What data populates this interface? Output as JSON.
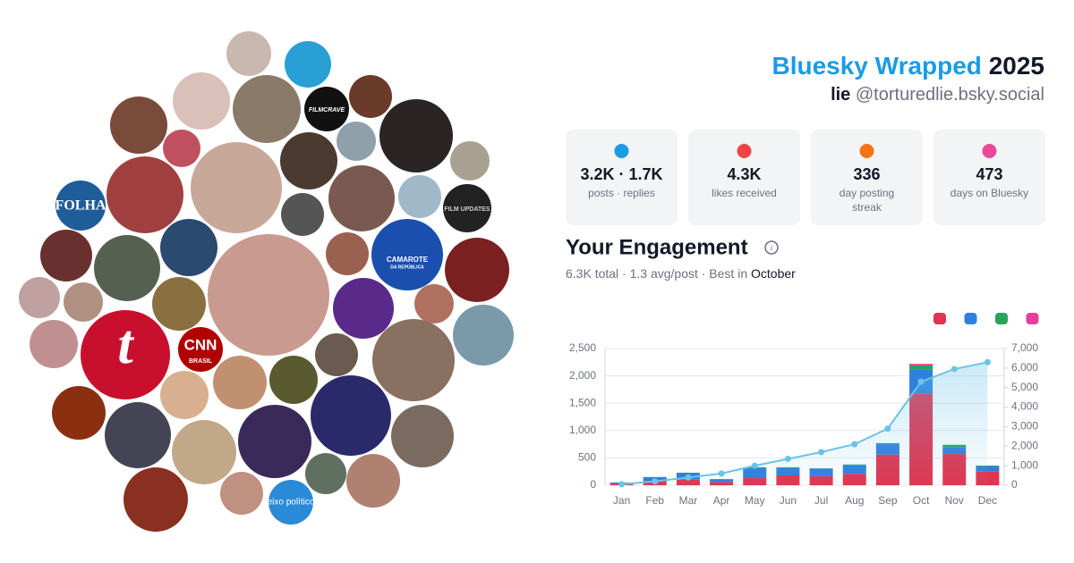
{
  "header": {
    "title": "Bluesky Wrapped",
    "year": "2025",
    "name": "lie",
    "handle": "@torturedlie.bsky.social"
  },
  "avatar_labels": [
    "FOLHA",
    "t",
    "CNN",
    "BRASIL",
    "FILMCRAVE",
    "FILM UPDATES",
    "CAMAROTE",
    "DA REPÚBLICA",
    "eixo político"
  ],
  "stats": [
    {
      "value": "3.2K · 1.7K",
      "label": "posts · replies"
    },
    {
      "value": "4.3K",
      "label": "likes received"
    },
    {
      "value": "336",
      "label": "day posting streak"
    },
    {
      "value": "473",
      "label": "days on Bluesky"
    }
  ],
  "engagement": {
    "title": "Your Engagement",
    "summary": "6.3K total · 1.3 avg/post · Best in",
    "best_month": "October"
  },
  "chart_data": {
    "type": "bar",
    "categories": [
      "Jan",
      "Feb",
      "Mar",
      "Apr",
      "May",
      "Jun",
      "Jul",
      "Aug",
      "Sep",
      "Oct",
      "Nov",
      "Dec"
    ],
    "series": [
      {
        "color": "#e0344f",
        "values": [
          30,
          80,
          100,
          60,
          130,
          180,
          165,
          210,
          560,
          1680,
          570,
          250
        ]
      },
      {
        "color": "#2f7fdc",
        "values": [
          20,
          70,
          120,
          50,
          190,
          140,
          140,
          160,
          190,
          430,
          130,
          100
        ]
      },
      {
        "color": "#27a35a",
        "values": [
          0,
          0,
          10,
          5,
          10,
          10,
          5,
          10,
          20,
          80,
          40,
          10
        ]
      },
      {
        "color": "#e83e9c",
        "values": [
          0,
          0,
          0,
          0,
          0,
          0,
          0,
          0,
          0,
          30,
          0,
          0
        ]
      },
      {
        "type": "line",
        "axis": "y2",
        "color": "#6cc3e8",
        "values": [
          50,
          200,
          400,
          600,
          1000,
          1350,
          1700,
          2100,
          2900,
          5300,
          5950,
          6300
        ]
      }
    ],
    "ylim": [
      0,
      2500
    ],
    "yticks": [
      0,
      500,
      {
        "value": 1000,
        "label": "1,000"
      },
      {
        "value": 1500,
        "label": "1,500"
      },
      {
        "value": 2000,
        "label": "2,000"
      },
      {
        "value": 2500,
        "label": "2,500"
      }
    ],
    "y2lim": [
      0,
      7000
    ],
    "y2ticks": [
      0,
      {
        "value": 1000,
        "label": "1,000"
      },
      {
        "value": 2000,
        "label": "2,000"
      },
      {
        "value": 3000,
        "label": "3,000"
      },
      {
        "value": 4000,
        "label": "4,000"
      },
      {
        "value": 5000,
        "label": "5,000"
      },
      {
        "value": 6000,
        "label": "6,000"
      },
      {
        "value": 7000,
        "label": "7,000"
      }
    ],
    "grid": true
  }
}
